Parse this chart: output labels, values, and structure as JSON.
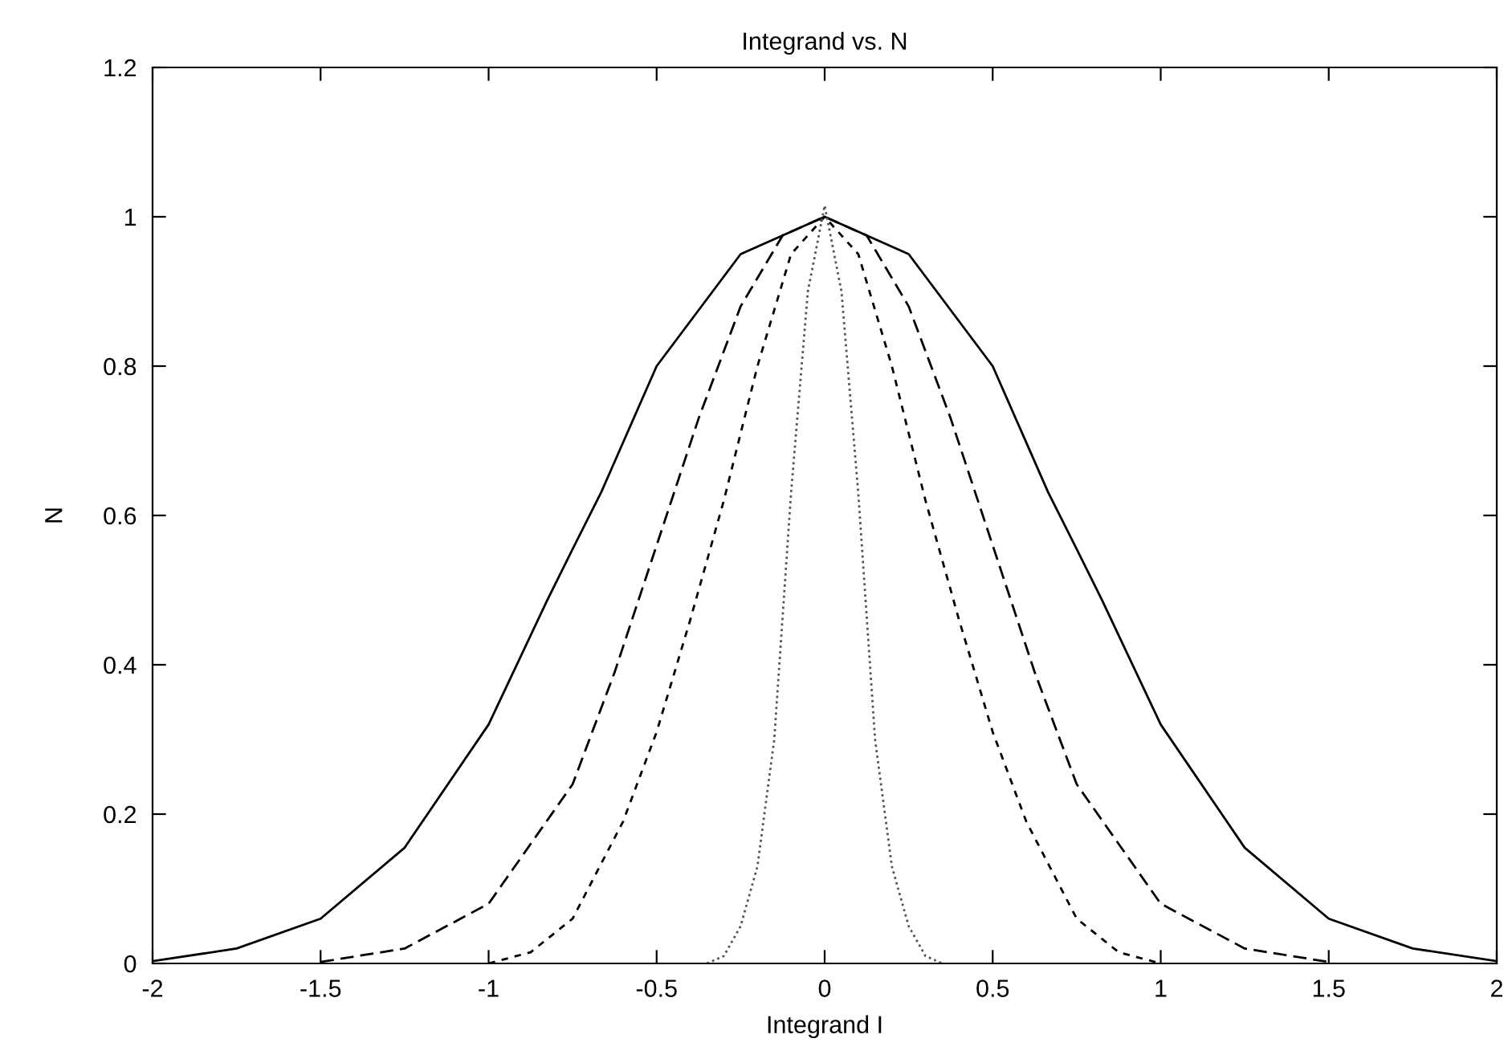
{
  "chart_data": {
    "type": "line",
    "title": "Integrand vs. N",
    "xlabel": "Integrand I",
    "ylabel": "N",
    "xlim": [
      -2,
      2
    ],
    "ylim": [
      0,
      1.2
    ],
    "xticks": [
      -2,
      -1.5,
      -1,
      -0.5,
      0,
      0.5,
      1,
      1.5,
      2
    ],
    "yticks": [
      0,
      0.2,
      0.4,
      0.6,
      0.8,
      1,
      1.2
    ],
    "grid": false,
    "legend": false,
    "marker": "none",
    "series": [
      {
        "color": "#000000",
        "line_style": "solid",
        "x": [
          -2,
          -1.75,
          -1.5,
          -1.25,
          -1,
          -0.825,
          -0.75,
          -0.665,
          -0.5,
          -0.25,
          0,
          0.25,
          0.5,
          0.665,
          0.75,
          0.825,
          1,
          1.25,
          1.5,
          1.75,
          2
        ],
        "values": [
          0.003,
          0.02,
          0.06,
          0.155,
          0.32,
          0.487,
          0.555,
          0.631,
          0.8,
          0.95,
          1,
          0.95,
          0.8,
          0.631,
          0.555,
          0.487,
          0.32,
          0.155,
          0.06,
          0.02,
          0.003
        ]
      },
      {
        "color": "#000000",
        "line_style": "dashed",
        "x": [
          -1.5,
          -1.25,
          -1,
          -0.75,
          -0.625,
          -0.5,
          -0.375,
          -0.25,
          -0.125,
          0,
          0.125,
          0.25,
          0.375,
          0.5,
          0.625,
          0.75,
          1,
          1.25,
          1.5
        ],
        "values": [
          0.002,
          0.02,
          0.08,
          0.24,
          0.39,
          0.56,
          0.73,
          0.88,
          0.975,
          1,
          0.975,
          0.88,
          0.73,
          0.56,
          0.39,
          0.24,
          0.08,
          0.02,
          0.002
        ]
      },
      {
        "color": "#000000",
        "line_style": "dashed",
        "x": [
          -1,
          -0.875,
          -0.75,
          -0.6,
          -0.5,
          -0.4,
          -0.3,
          -0.2,
          -0.1,
          0,
          0.1,
          0.2,
          0.3,
          0.4,
          0.5,
          0.6,
          0.75,
          0.875,
          1
        ],
        "values": [
          0,
          0.015,
          0.06,
          0.19,
          0.31,
          0.46,
          0.62,
          0.8,
          0.95,
          1,
          0.95,
          0.8,
          0.62,
          0.46,
          0.31,
          0.19,
          0.06,
          0.015,
          0
        ]
      },
      {
        "color": "#555555",
        "line_style": "dotted",
        "x": [
          -0.35,
          -0.3,
          -0.25,
          -0.2,
          -0.15,
          -0.1,
          -0.05,
          0,
          0.05,
          0.1,
          0.15,
          0.2,
          0.25,
          0.3,
          0.35
        ],
        "values": [
          0,
          0.01,
          0.05,
          0.13,
          0.3,
          0.63,
          0.9,
          1.015,
          0.9,
          0.63,
          0.3,
          0.13,
          0.05,
          0.01,
          0
        ]
      }
    ]
  }
}
